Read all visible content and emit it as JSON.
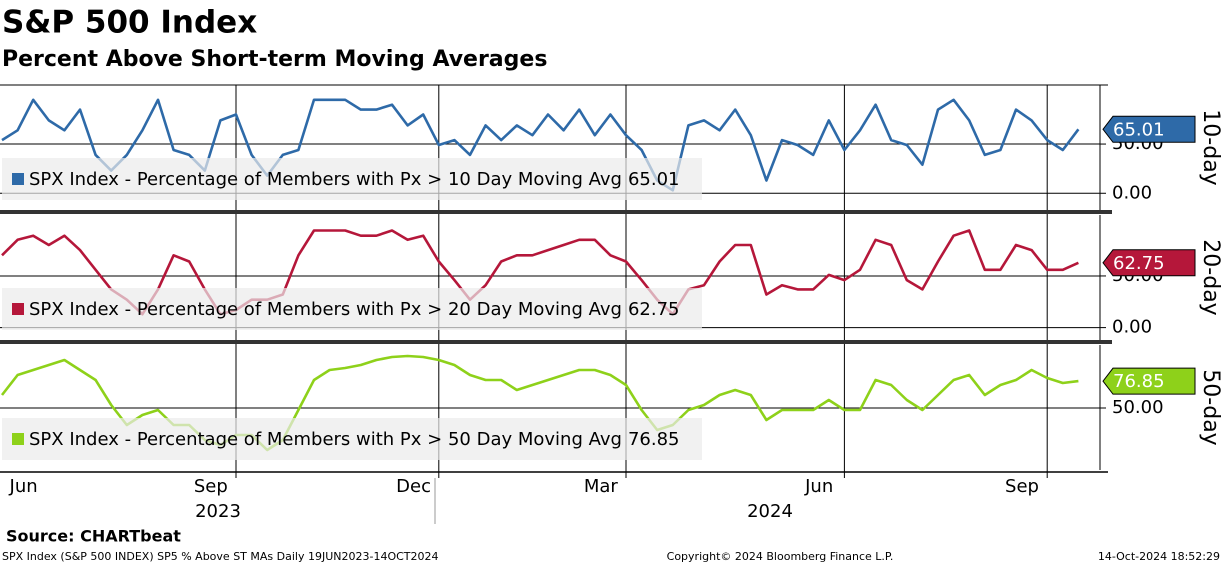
{
  "chart_data": {
    "type": "line",
    "title": "S&P 500 Index",
    "subtitle": "Percent Above Short-term Moving Averages",
    "categories": [
      null,
      "Jun",
      null,
      null,
      null,
      null,
      null,
      null,
      null,
      null,
      null,
      null,
      null,
      "Sep",
      null,
      null,
      null,
      null,
      null,
      null,
      null,
      null,
      null,
      null,
      null,
      null,
      "Dec",
      null,
      null,
      null,
      null,
      null,
      null,
      null,
      null,
      null,
      null,
      null,
      "Mar",
      null,
      null,
      null,
      null,
      null,
      null,
      null,
      null,
      null,
      null,
      null,
      null,
      null,
      "Jun",
      null,
      null,
      null,
      null,
      null,
      null,
      null,
      null,
      null,
      null,
      null,
      null,
      "Sep",
      null,
      null,
      null,
      null
    ],
    "years": [
      "2023",
      "2024"
    ],
    "grid": true,
    "series": [
      {
        "name": "SPX Index - Percentage of Members with Px > 10 Day Moving Avg",
        "axis_label": "10-day",
        "color": "#2e6aa8",
        "ylim": [
          -17,
          110
        ],
        "yticks": [
          {
            "value": 0,
            "label": "0.00"
          },
          {
            "value": 50,
            "label": "50.00"
          }
        ],
        "values": [
          54,
          64,
          95,
          74,
          64,
          85,
          39,
          23,
          39,
          64,
          95,
          44,
          39,
          23,
          74,
          80,
          39,
          18,
          39,
          44,
          95,
          95,
          95,
          85,
          85,
          90,
          69,
          80,
          49,
          54,
          39,
          69,
          54,
          69,
          59,
          80,
          64,
          85,
          59,
          80,
          59,
          44,
          13,
          3,
          69,
          74,
          64,
          85,
          59,
          13,
          54,
          49,
          39,
          74,
          44,
          64,
          90,
          54,
          49,
          29,
          85,
          95,
          74,
          39,
          44,
          85,
          74,
          54,
          44,
          65.01
        ]
      },
      {
        "name": "SPX Index - Percentage of Members with Px > 20 Day Moving Avg",
        "axis_label": "20-day",
        "color": "#b5173a",
        "ylim": [
          -12,
          109
        ],
        "yticks": [
          {
            "value": 0,
            "label": "0.00"
          },
          {
            "value": 50,
            "label": "50.00"
          }
        ],
        "values": [
          70,
          85,
          89,
          80,
          89,
          75,
          56,
          37,
          27,
          13,
          37,
          70,
          64,
          37,
          13,
          17,
          27,
          27,
          32,
          70,
          94,
          94,
          94,
          89,
          89,
          94,
          85,
          89,
          64,
          46,
          27,
          41,
          64,
          70,
          70,
          75,
          80,
          85,
          85,
          70,
          64,
          46,
          27,
          13,
          37,
          41,
          64,
          80,
          80,
          32,
          41,
          37,
          37,
          51,
          46,
          56,
          85,
          80,
          46,
          37,
          64,
          89,
          94,
          56,
          56,
          80,
          75,
          56,
          56,
          62.75
        ]
      },
      {
        "name": "SPX Index - Percentage of Members with Px > 50 Day Moving Avg",
        "axis_label": "50-day",
        "color": "#8ed11a",
        "ylim": [
          -12,
          113
        ],
        "yticks": [
          {
            "value": 50,
            "label": "50.00"
          }
        ],
        "values": [
          63,
          83,
          88,
          93,
          98,
          88,
          78,
          53,
          33,
          43,
          48,
          33,
          33,
          18,
          13,
          23,
          23,
          8,
          18,
          48,
          78,
          88,
          90,
          93,
          98,
          101,
          102,
          101,
          98,
          93,
          83,
          78,
          78,
          68,
          73,
          78,
          83,
          88,
          88,
          83,
          73,
          48,
          28,
          33,
          48,
          53,
          63,
          68,
          63,
          38,
          48,
          48,
          48,
          58,
          48,
          48,
          78,
          73,
          58,
          48,
          63,
          78,
          83,
          63,
          73,
          78,
          88,
          80,
          75,
          76.85
        ]
      }
    ],
    "source": "Source: CHARTbeat",
    "footer_left": "SPX Index (S&P 500 INDEX) SP5 % Above ST MAs  Daily 19JUN2023-14OCT2024",
    "footer_center": "Copyright© 2024 Bloomberg Finance L.P.",
    "footer_right": "14-Oct-2024 18:52:29"
  }
}
